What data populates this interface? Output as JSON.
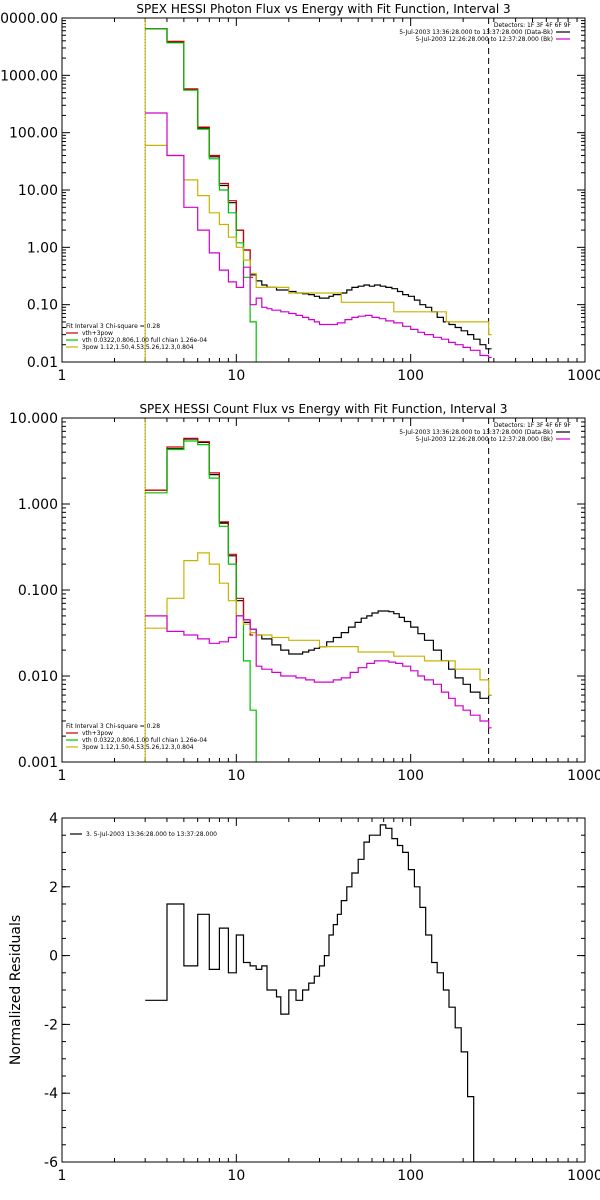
{
  "chart_data": [
    {
      "type": "line",
      "title": "SPEX HESSI Photon Flux vs Energy with Fit Function, Interval 3",
      "xscale": "log",
      "yscale": "log",
      "xlim": [
        1,
        1000
      ],
      "ylim": [
        0.01,
        10000
      ],
      "xticks": [
        1,
        10,
        100,
        1000
      ],
      "xtick_labels": [
        "1",
        "10",
        "100",
        "1000"
      ],
      "yticks": [
        0.01,
        0.1,
        1,
        10,
        100,
        1000,
        10000
      ],
      "ytick_labels": [
        "0.01",
        "0.10",
        "1.00",
        "10.00",
        "100.00",
        "1000.00",
        "10000.00"
      ],
      "vlines": [
        {
          "x": 3,
          "style": "dotted",
          "color": "#000000"
        },
        {
          "x": 3,
          "style": "solid",
          "color": "#c8b400"
        },
        {
          "x": 280,
          "style": "dashed",
          "color": "#000000"
        }
      ],
      "header_text": [
        "Detectors: 1F 3F 4F 6F 9F",
        "5-Jul-2003 13:36:28.000 to 13:37:28.000 (Data-Bk)",
        "5-Jul-2003 12:26:28.000 to 12:37:28.000 (Bk)"
      ],
      "header_keys": [
        {
          "label_index": 1,
          "color": "#000000"
        },
        {
          "label_index": 2,
          "color": "#d000d0"
        }
      ],
      "legend_title": "Fit Interval 3   Chi-square = 0.28",
      "legend": [
        {
          "label": "vth+3pow",
          "color": "#cc0000"
        },
        {
          "label": "vth 0.0322,0.806,1.00  full chian 1.26e-04",
          "color": "#00c000"
        },
        {
          "label": "3pow 1.12,1.50,4.53,5.26,12.3,0.804",
          "color": "#c8b400"
        }
      ],
      "legend_position": "bottom-left",
      "series": [
        {
          "name": "5-Jul-2003 13:36:28.000 to 13:37:28.000 (Data-Bk)",
          "color": "#000000",
          "x": [
            3,
            4,
            5,
            6,
            7,
            8,
            9,
            10,
            11,
            12,
            13,
            14,
            15,
            16,
            17,
            18,
            20,
            22,
            24,
            26,
            28,
            30,
            32,
            34,
            36,
            38,
            40,
            43,
            46,
            50,
            54,
            58,
            62,
            67,
            72,
            78,
            84,
            90,
            97,
            105,
            113,
            122,
            132,
            142,
            154,
            166,
            180,
            195,
            212,
            230,
            250,
            270,
            280
          ],
          "y": [
            6500,
            3800,
            560,
            120,
            38,
            12,
            6,
            2,
            0.9,
            0.33,
            0.26,
            0.22,
            0.2,
            0.2,
            0.18,
            0.18,
            0.17,
            0.16,
            0.155,
            0.15,
            0.14,
            0.13,
            0.13,
            0.14,
            0.15,
            0.15,
            0.16,
            0.18,
            0.2,
            0.21,
            0.22,
            0.21,
            0.22,
            0.21,
            0.2,
            0.19,
            0.17,
            0.15,
            0.14,
            0.12,
            0.1,
            0.09,
            0.075,
            0.06,
            0.05,
            0.045,
            0.04,
            0.035,
            0.03,
            0.025,
            0.02,
            0.017,
            0.017
          ]
        },
        {
          "name": "vth+3pow",
          "color": "#cc0000",
          "x": [
            3,
            4,
            5,
            6,
            7,
            8,
            9,
            10,
            11,
            12
          ],
          "y": [
            6500,
            3900,
            580,
            125,
            40,
            13,
            6.5,
            2,
            0.9,
            0.3
          ]
        },
        {
          "name": "vth",
          "color": "#00c000",
          "x": [
            3,
            4,
            5,
            6,
            7,
            8,
            9,
            10,
            11,
            12,
            13
          ],
          "y": [
            6500,
            3700,
            550,
            115,
            35,
            10,
            4,
            1.2,
            0.3,
            0.05,
            0.005
          ]
        },
        {
          "name": "3pow",
          "color": "#c8b400",
          "x": [
            3,
            4,
            5,
            6,
            7,
            8,
            9,
            10,
            11,
            12,
            13,
            20,
            40,
            80,
            160,
            280
          ],
          "y": [
            60,
            40,
            15,
            8,
            4,
            2.5,
            1.5,
            1,
            0.6,
            0.35,
            0.2,
            0.16,
            0.11,
            0.075,
            0.05,
            0.03
          ]
        },
        {
          "name": "5-Jul-2003 12:26:28.000 to 12:37:28.000 (Bk)",
          "color": "#d000d0",
          "x": [
            3,
            4,
            5,
            6,
            7,
            8,
            9,
            10,
            11,
            12,
            13,
            14,
            15,
            16,
            18,
            20,
            22,
            24,
            26,
            28,
            30,
            34,
            38,
            42,
            46,
            50,
            55,
            60,
            66,
            72,
            80,
            90,
            100,
            110,
            120,
            135,
            150,
            165,
            180,
            200,
            220,
            250,
            280
          ],
          "y": [
            220,
            40,
            5,
            2,
            0.8,
            0.4,
            0.25,
            0.2,
            0.45,
            0.1,
            0.13,
            0.09,
            0.085,
            0.08,
            0.075,
            0.07,
            0.065,
            0.06,
            0.055,
            0.05,
            0.045,
            0.045,
            0.048,
            0.055,
            0.06,
            0.063,
            0.065,
            0.06,
            0.057,
            0.052,
            0.048,
            0.042,
            0.037,
            0.033,
            0.03,
            0.027,
            0.025,
            0.022,
            0.02,
            0.018,
            0.016,
            0.013,
            0.012
          ]
        }
      ]
    },
    {
      "type": "line",
      "title": "SPEX HESSI Count Flux vs Energy with Fit Function, Interval 3",
      "xscale": "log",
      "yscale": "log",
      "xlim": [
        1,
        1000
      ],
      "ylim": [
        0.001,
        10
      ],
      "xticks": [
        1,
        10,
        100,
        1000
      ],
      "xtick_labels": [
        "1",
        "10",
        "100",
        "1000"
      ],
      "yticks": [
        0.001,
        0.01,
        0.1,
        1,
        10
      ],
      "ytick_labels": [
        "0.001",
        "0.010",
        "0.100",
        "1.000",
        "10.000"
      ],
      "vlines": [
        {
          "x": 3,
          "style": "dotted",
          "color": "#000000"
        },
        {
          "x": 3,
          "style": "solid",
          "color": "#c8b400"
        },
        {
          "x": 280,
          "style": "dashed",
          "color": "#000000"
        }
      ],
      "header_text": [
        "Detectors: 1F 3F 4F 6F 9F",
        "5-Jul-2003 13:36:28.000 to 13:37:28.000 (Data-Bk)",
        "5-Jul-2003 12:26:28.000 to 12:37:28.000 (Bk)"
      ],
      "header_keys": [
        {
          "label_index": 1,
          "color": "#000000"
        },
        {
          "label_index": 2,
          "color": "#d000d0"
        }
      ],
      "legend_title": "Fit Interval 3   Chi-square = 0.28",
      "legend": [
        {
          "label": "vth+3pow",
          "color": "#cc0000"
        },
        {
          "label": "vth 0.0322,0.806,1.00  full chian 1.26e-04",
          "color": "#00c000"
        },
        {
          "label": "3pow 1.12,1.50,4.53,5.26,12.3,0.804",
          "color": "#c8b400"
        }
      ],
      "legend_position": "bottom-left",
      "series": [
        {
          "name": "5-Jul-2003 13:36:28.000 to 13:37:28.000 (Data-Bk)",
          "color": "#000000",
          "x": [
            3,
            4,
            5,
            6,
            7,
            8,
            9,
            10,
            11,
            12,
            13,
            14,
            16,
            18,
            20,
            22,
            24,
            26,
            28,
            30,
            33,
            36,
            40,
            44,
            48,
            52,
            56,
            60,
            65,
            70,
            75,
            80,
            86,
            92,
            100,
            110,
            120,
            135,
            150,
            165,
            180,
            200,
            220,
            250,
            280
          ],
          "y": [
            1.45,
            4.4,
            5.7,
            5.2,
            2.2,
            0.6,
            0.25,
            0.075,
            0.042,
            0.035,
            0.03,
            0.027,
            0.023,
            0.02,
            0.018,
            0.018,
            0.019,
            0.02,
            0.021,
            0.022,
            0.025,
            0.028,
            0.032,
            0.037,
            0.042,
            0.047,
            0.05,
            0.054,
            0.057,
            0.057,
            0.056,
            0.053,
            0.048,
            0.043,
            0.037,
            0.031,
            0.026,
            0.02,
            0.015,
            0.012,
            0.0095,
            0.008,
            0.0065,
            0.0055,
            0.006
          ]
        },
        {
          "name": "vth+3pow",
          "color": "#cc0000",
          "x": [
            3,
            4,
            5,
            6,
            7,
            8,
            9,
            10,
            11,
            12
          ],
          "y": [
            1.45,
            4.6,
            5.8,
            5.3,
            2.3,
            0.62,
            0.26,
            0.08,
            0.045,
            0.03
          ]
        },
        {
          "name": "vth",
          "color": "#00c000",
          "x": [
            3,
            4,
            5,
            6,
            7,
            8,
            9,
            10,
            11,
            12,
            13
          ],
          "y": [
            1.35,
            4.3,
            5.4,
            4.9,
            2.0,
            0.55,
            0.2,
            0.05,
            0.015,
            0.004,
            0.0007
          ]
        },
        {
          "name": "3pow",
          "color": "#c8b400",
          "x": [
            3,
            4,
            5,
            6,
            7,
            8,
            9,
            10,
            11,
            12,
            13,
            16,
            20,
            30,
            50,
            80,
            120,
            180,
            250,
            280
          ],
          "y": [
            0.036,
            0.08,
            0.22,
            0.27,
            0.2,
            0.12,
            0.075,
            0.05,
            0.04,
            0.032,
            0.03,
            0.028,
            0.026,
            0.022,
            0.019,
            0.017,
            0.015,
            0.012,
            0.009,
            0.006
          ]
        },
        {
          "name": "5-Jul-2003 12:26:28.000 to 12:37:28.000 (Bk)",
          "color": "#d000d0",
          "x": [
            3,
            4,
            5,
            6,
            7,
            8,
            9,
            10,
            11,
            12,
            13,
            14,
            16,
            18,
            20,
            22,
            25,
            28,
            32,
            36,
            40,
            45,
            50,
            56,
            62,
            68,
            75,
            82,
            90,
            100,
            110,
            120,
            135,
            150,
            165,
            180,
            200,
            220,
            250,
            280
          ],
          "y": [
            0.05,
            0.033,
            0.03,
            0.027,
            0.024,
            0.025,
            0.028,
            0.05,
            0.045,
            0.035,
            0.013,
            0.012,
            0.011,
            0.01,
            0.01,
            0.0095,
            0.009,
            0.0085,
            0.0085,
            0.009,
            0.0095,
            0.011,
            0.0125,
            0.014,
            0.015,
            0.015,
            0.0145,
            0.014,
            0.013,
            0.0115,
            0.01,
            0.009,
            0.008,
            0.0065,
            0.0055,
            0.0045,
            0.004,
            0.0035,
            0.003,
            0.0025
          ]
        }
      ]
    },
    {
      "type": "line",
      "title": "",
      "xscale": "log",
      "yscale": "linear",
      "xlim": [
        1,
        1000
      ],
      "ylim": [
        -6,
        4
      ],
      "xticks": [
        1,
        10,
        100,
        1000
      ],
      "xtick_labels": [
        "1",
        "10",
        "100",
        "1000"
      ],
      "yticks": [
        -6,
        -4,
        -2,
        0,
        2,
        4
      ],
      "ytick_labels": [
        "-6",
        "-4",
        "-2",
        "0",
        "2",
        "4"
      ],
      "ylabel": "Normalized Residuals",
      "legend": [
        {
          "label": "3. 5-Jul-2003 13:36:28.000 to 13:37:28.000",
          "color": "#000000"
        }
      ],
      "legend_position": "top-left",
      "series": [
        {
          "name": "3. 5-Jul-2003 13:36:28.000 to 13:37:28.000",
          "color": "#000000",
          "x": [
            3,
            4,
            5,
            6,
            7,
            8,
            9,
            10,
            11,
            12,
            13,
            14,
            15,
            16,
            17,
            18,
            20,
            22,
            24,
            26,
            28,
            30,
            32,
            34,
            36,
            38,
            40,
            43,
            46,
            50,
            54,
            58,
            62,
            67,
            72,
            78,
            84,
            90,
            97,
            105,
            113,
            122,
            132,
            142,
            154,
            166,
            180,
            195,
            212,
            230,
            250,
            270,
            280
          ],
          "y": [
            -1.3,
            1.5,
            -0.3,
            1.2,
            -0.4,
            0.8,
            -0.5,
            0.6,
            -0.2,
            -0.3,
            -0.4,
            -0.3,
            -1.0,
            -1.0,
            -1.2,
            -1.7,
            -1.0,
            -1.3,
            -1.0,
            -0.8,
            -0.6,
            -0.3,
            0,
            0.6,
            0.9,
            1.2,
            1.6,
            2.0,
            2.4,
            2.8,
            3.3,
            3.5,
            3.5,
            3.8,
            3.7,
            3.4,
            3.2,
            3.0,
            2.5,
            2.0,
            1.4,
            0.6,
            -0.2,
            -0.5,
            -1.0,
            -1.5,
            -2.1,
            -2.8,
            -4.1,
            -6,
            -6,
            -6,
            -6
          ]
        }
      ]
    }
  ]
}
